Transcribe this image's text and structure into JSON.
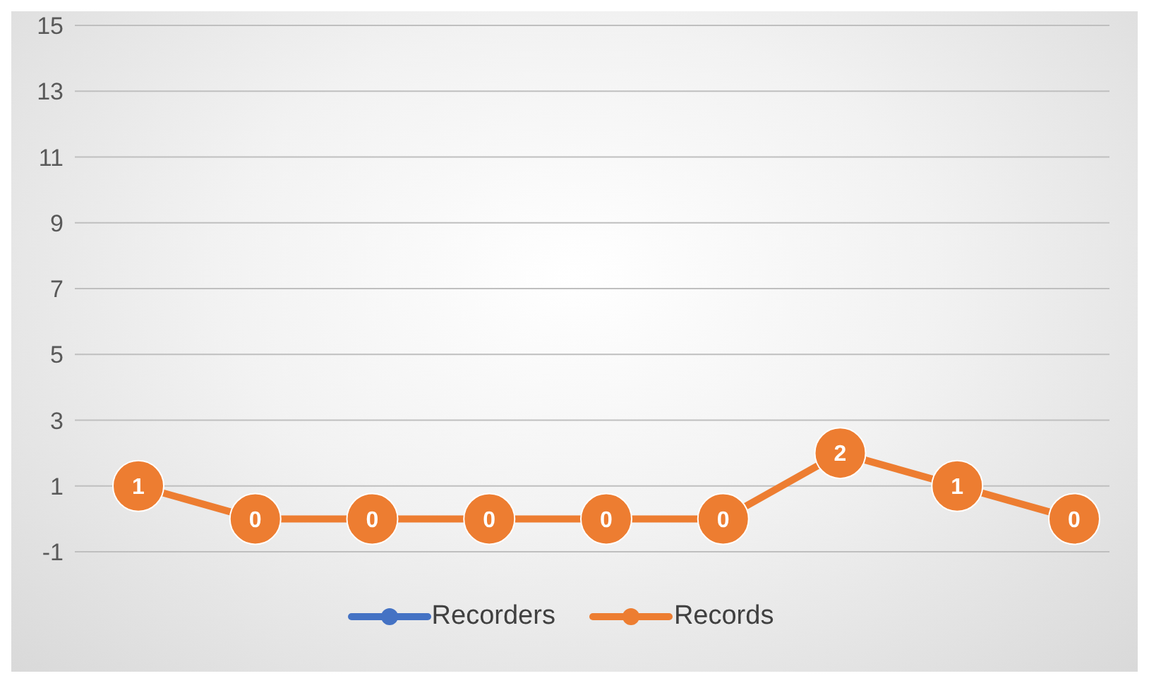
{
  "chart_data": {
    "type": "line",
    "categories": [
      null,
      null,
      null,
      null,
      null,
      null,
      null,
      null,
      null
    ],
    "series": [
      {
        "name": "Recorders",
        "color": "#4472c4",
        "values": [
          null,
          null,
          null,
          null,
          null,
          null,
          null,
          null,
          null
        ]
      },
      {
        "name": "Records",
        "color": "#ed7d31",
        "values": [
          1,
          0,
          0,
          0,
          0,
          0,
          2,
          1,
          0
        ]
      }
    ],
    "ylim": [
      -1,
      15
    ],
    "yticks": [
      -1,
      1,
      3,
      5,
      7,
      9,
      11,
      13,
      15
    ],
    "grid": "y",
    "legend": "bottom",
    "marker": "circle",
    "data_labels": true,
    "tick_labels": "y"
  }
}
